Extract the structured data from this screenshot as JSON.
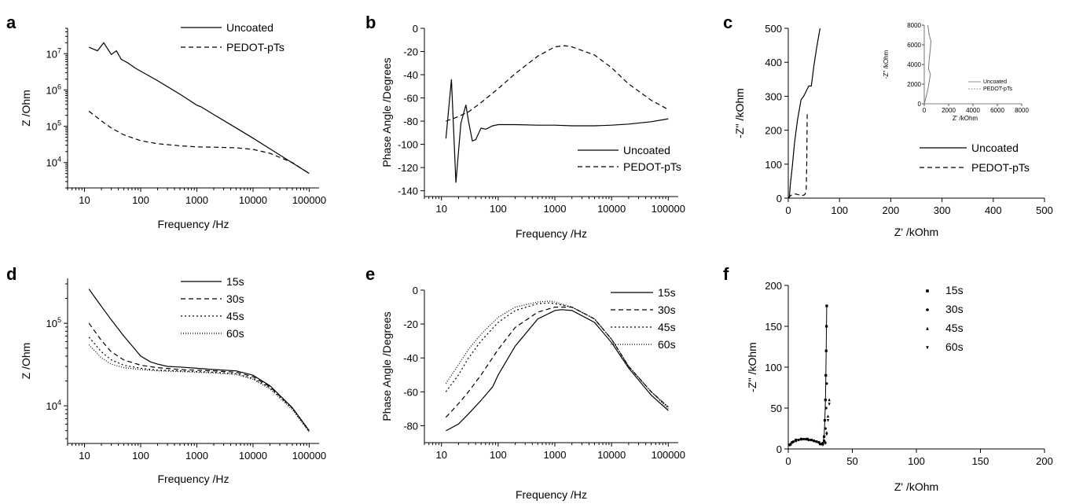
{
  "figure": {
    "panels": [
      {
        "letter": "a",
        "chart_data": {
          "type": "line",
          "xlabel": "Frequency /Hz",
          "ylabel": "Z /Ohm",
          "xscale": "log",
          "yscale": "log",
          "xlim": [
            5,
            150000
          ],
          "ylim": [
            2000,
            50000000
          ],
          "x_ticks": [
            10,
            100,
            1000,
            10000,
            100000
          ],
          "y_ticks": [
            10000,
            100000,
            1000000,
            10000000
          ],
          "legend_position": "top-right",
          "series": [
            {
              "name": "Uncoated",
              "style": "solid",
              "x": [
                12,
                17,
                22,
                30,
                37,
                45,
                60,
                80,
                100,
                200,
                500,
                1000,
                1200,
                2000,
                5000,
                10000,
                20000,
                50000,
                100000
              ],
              "y": [
                15000000,
                12000000,
                20000000,
                9500000,
                12000000,
                7000000,
                5500000,
                4000000,
                3300000,
                1800000,
                770000,
                380000,
                340000,
                210000,
                90000,
                47000,
                24000,
                9800,
                5000
              ]
            },
            {
              "name": "PEDOT-pTs",
              "style": "dashed",
              "x": [
                12,
                20,
                30,
                50,
                100,
                200,
                500,
                1000,
                2000,
                5000,
                10000,
                20000,
                50000,
                100000
              ],
              "y": [
                260000,
                140000,
                90000,
                58000,
                40000,
                33000,
                29000,
                27000,
                26500,
                25500,
                23000,
                18000,
                10000,
                5000
              ]
            }
          ]
        }
      },
      {
        "letter": "b",
        "chart_data": {
          "type": "line",
          "xlabel": "Frequency /Hz",
          "ylabel": "Phase Angle /Degrees",
          "xscale": "log",
          "yscale": "linear",
          "xlim": [
            5,
            150000
          ],
          "ylim": [
            -145,
            0
          ],
          "x_ticks": [
            10,
            100,
            1000,
            10000,
            100000
          ],
          "y_ticks": [
            0,
            -20,
            -40,
            -60,
            -80,
            -100,
            -120,
            -140
          ],
          "legend_position": "bottom-right",
          "series": [
            {
              "name": "Uncoated",
              "style": "solid",
              "x": [
                12,
                15,
                18,
                22,
                27,
                30,
                35,
                40,
                50,
                60,
                80,
                100,
                200,
                500,
                1000,
                2000,
                5000,
                10000,
                20000,
                50000,
                100000
              ],
              "y": [
                -95,
                -44,
                -133,
                -82,
                -66,
                -80,
                -97,
                -96,
                -86,
                -87,
                -84,
                -83,
                -83,
                -83.5,
                -83.5,
                -84,
                -84,
                -83.5,
                -82.5,
                -80.5,
                -78
              ]
            },
            {
              "name": "PEDOT-pTs",
              "style": "dashed",
              "x": [
                12,
                20,
                30,
                50,
                100,
                200,
                500,
                1000,
                1500,
                2000,
                5000,
                10000,
                20000,
                50000,
                100000
              ],
              "y": [
                -80,
                -76,
                -72,
                -64,
                -52,
                -39,
                -24,
                -16,
                -15,
                -16,
                -23,
                -34,
                -48,
                -62,
                -70
              ]
            }
          ]
        }
      },
      {
        "letter": "c",
        "chart_data": {
          "type": "line",
          "xlabel": "Z' /kOhm",
          "ylabel": "-Z'' /kOhm",
          "xlim": [
            0,
            500
          ],
          "ylim": [
            0,
            500
          ],
          "x_ticks": [
            0,
            100,
            200,
            300,
            400,
            500
          ],
          "y_ticks": [
            0,
            100,
            200,
            300,
            400,
            500
          ],
          "legend_position": "bottom-right",
          "series": [
            {
              "name": "Uncoated",
              "style": "solid",
              "x": [
                2,
                4,
                8,
                12,
                18,
                25,
                30,
                40,
                45,
                50,
                55,
                62
              ],
              "y": [
                0,
                40,
                95,
                160,
                230,
                290,
                300,
                330,
                330,
                390,
                440,
                500
              ]
            },
            {
              "name": "PEDOT-pTs",
              "style": "dashed",
              "x": [
                0,
                5,
                10,
                15,
                20,
                24,
                28,
                32,
                35,
                36,
                36.5,
                37
              ],
              "y": [
                0,
                8,
                12,
                12,
                10,
                8,
                8,
                10,
                20,
                100,
                180,
                250
              ]
            }
          ],
          "inset": {
            "xlabel": "Z' /kOhm",
            "ylabel": "-Z'' /kOhm",
            "xlim": [
              0,
              8000
            ],
            "ylim": [
              0,
              8000
            ],
            "x_ticks": [
              0,
              2000,
              4000,
              6000,
              8000
            ],
            "y_ticks": [
              0,
              2000,
              4000,
              6000,
              8000
            ],
            "legend": [
              "Uncoated",
              "PEDOT-pTs"
            ],
            "series": [
              {
                "name": "Uncoated",
                "style": "solid",
                "x": [
                  0,
                  150,
                  300,
                  400,
                  500,
                  350,
                  400,
                  500,
                  550,
                  400,
                  300
                ],
                "y": [
                  0,
                  700,
                  1500,
                  2200,
                  3000,
                  3600,
                  4400,
                  5600,
                  6400,
                  7000,
                  8000
                ]
              }
            ]
          }
        }
      },
      {
        "letter": "d",
        "chart_data": {
          "type": "line",
          "xlabel": "Frequency /Hz",
          "ylabel": "Z /Ohm",
          "xscale": "log",
          "yscale": "log",
          "xlim": [
            5,
            150000
          ],
          "ylim": [
            3500,
            350000
          ],
          "x_ticks": [
            10,
            100,
            1000,
            10000,
            100000
          ],
          "y_ticks": [
            10000,
            100000
          ],
          "legend_position": "top-right",
          "series": [
            {
              "name": "15s",
              "style": "solid",
              "x": [
                12,
                20,
                30,
                50,
                80,
                100,
                150,
                200,
                300,
                500,
                1000,
                2000,
                5000,
                10000,
                20000,
                50000,
                100000
              ],
              "y": [
                260000,
                160000,
                110000,
                70000,
                48000,
                40000,
                34000,
                32000,
                30000,
                29500,
                28500,
                27500,
                26500,
                23500,
                17500,
                9500,
                5000
              ]
            },
            {
              "name": "30s",
              "style": "dashed",
              "x": [
                12,
                20,
                30,
                50,
                100,
                200,
                500,
                1000,
                2000,
                5000,
                10000,
                20000,
                50000,
                100000
              ],
              "y": [
                100000,
                62000,
                45000,
                36000,
                31000,
                29000,
                27500,
                27000,
                26500,
                25500,
                22500,
                17000,
                9500,
                5000
              ]
            },
            {
              "name": "45s",
              "style": "dotted",
              "x": [
                12,
                20,
                30,
                50,
                100,
                200,
                500,
                1000,
                2000,
                5000,
                10000,
                20000,
                50000,
                100000
              ],
              "y": [
                68000,
                45000,
                36000,
                31000,
                28500,
                27000,
                26500,
                26000,
                25500,
                24500,
                21500,
                16500,
                9300,
                4900
              ]
            },
            {
              "name": "60s",
              "style": "fine-dotted",
              "x": [
                12,
                20,
                30,
                50,
                100,
                200,
                500,
                1000,
                2000,
                5000,
                10000,
                20000,
                50000,
                100000
              ],
              "y": [
                55000,
                38000,
                32000,
                29000,
                27500,
                26500,
                26000,
                25500,
                25000,
                24000,
                21000,
                16000,
                9000,
                4800
              ]
            }
          ]
        }
      },
      {
        "letter": "e",
        "chart_data": {
          "type": "line",
          "xlabel": "Frequency /Hz",
          "ylabel": "Phase Angle /Degrees",
          "xscale": "log",
          "yscale": "linear",
          "xlim": [
            5,
            150000
          ],
          "ylim": [
            -90,
            0
          ],
          "x_ticks": [
            10,
            100,
            1000,
            10000,
            100000
          ],
          "y_ticks": [
            0,
            -20,
            -40,
            -60,
            -80
          ],
          "legend_position": "top-right",
          "series": [
            {
              "name": "15s",
              "style": "solid",
              "x": [
                12,
                20,
                30,
                50,
                80,
                100,
                200,
                500,
                1000,
                1300,
                2000,
                5000,
                10000,
                20000,
                50000,
                100000
              ],
              "y": [
                -83,
                -79,
                -73,
                -65,
                -57,
                -50,
                -33,
                -17,
                -12,
                -11.5,
                -12,
                -19,
                -31,
                -46,
                -62,
                -71
              ]
            },
            {
              "name": "30s",
              "style": "dashed",
              "x": [
                12,
                20,
                30,
                50,
                100,
                200,
                500,
                1000,
                2000,
                5000,
                10000,
                20000,
                50000,
                100000
              ],
              "y": [
                -75,
                -67,
                -60,
                -50,
                -35,
                -22,
                -13,
                -10,
                -10,
                -17,
                -29,
                -45,
                -60,
                -69
              ]
            },
            {
              "name": "45s",
              "style": "dotted",
              "x": [
                12,
                20,
                30,
                50,
                100,
                200,
                500,
                800,
                1000,
                2000,
                5000,
                10000,
                20000,
                50000,
                100000
              ],
              "y": [
                -60,
                -50,
                -40,
                -30,
                -19,
                -12,
                -8,
                -7.5,
                -8,
                -10,
                -17,
                -29,
                -45,
                -60,
                -69
              ]
            },
            {
              "name": "60s",
              "style": "fine-dotted",
              "x": [
                12,
                20,
                30,
                50,
                100,
                200,
                500,
                800,
                1000,
                2000,
                5000,
                10000,
                20000,
                50000,
                100000
              ],
              "y": [
                -55,
                -44,
                -35,
                -26,
                -16,
                -10,
                -7,
                -6.5,
                -7,
                -10,
                -17,
                -29,
                -45,
                -60,
                -70
              ]
            }
          ]
        }
      },
      {
        "letter": "f",
        "chart_data": {
          "type": "scatter",
          "xlabel": "Z' /kOhm",
          "ylabel": "-Z'' /kOhm",
          "xlim": [
            0,
            200
          ],
          "ylim": [
            0,
            200
          ],
          "x_ticks": [
            0,
            50,
            100,
            150,
            200
          ],
          "y_ticks": [
            0,
            50,
            100,
            150,
            200
          ],
          "legend_position": "top-right",
          "legend_markers": {
            "15s": "square",
            "30s": "circle",
            "45s": "triangle-up",
            "60s": "triangle-down"
          },
          "series": [
            {
              "name": "15s",
              "marker": "square",
              "x": [
                1,
                3,
                6,
                10,
                14,
                18,
                22,
                25,
                27,
                28,
                28.5,
                29,
                29.3,
                29.6,
                29.8,
                30
              ],
              "y": [
                5,
                8,
                11,
                12,
                12,
                11,
                9,
                6,
                7,
                15,
                35,
                60,
                90,
                120,
                150,
                175
              ]
            },
            {
              "name": "30s",
              "marker": "circle",
              "x": [
                1,
                4,
                8,
                12,
                16,
                20,
                24,
                26,
                28,
                29,
                29.5,
                30
              ],
              "y": [
                5,
                9,
                11,
                12,
                11,
                10,
                8,
                6,
                10,
                25,
                50,
                80
              ]
            },
            {
              "name": "45s",
              "marker": "triangle-up",
              "x": [
                2,
                6,
                10,
                15,
                20,
                24,
                27,
                29,
                30,
                31,
                32
              ],
              "y": [
                6,
                10,
                12,
                12,
                10,
                8,
                6,
                8,
                20,
                40,
                60
              ]
            },
            {
              "name": "60s",
              "marker": "triangle-down",
              "x": [
                2,
                6,
                10,
                15,
                20,
                24,
                27,
                29,
                30,
                31,
                32
              ],
              "y": [
                6,
                10,
                12,
                12,
                10,
                8,
                5,
                7,
                18,
                35,
                55
              ]
            }
          ]
        }
      }
    ]
  }
}
